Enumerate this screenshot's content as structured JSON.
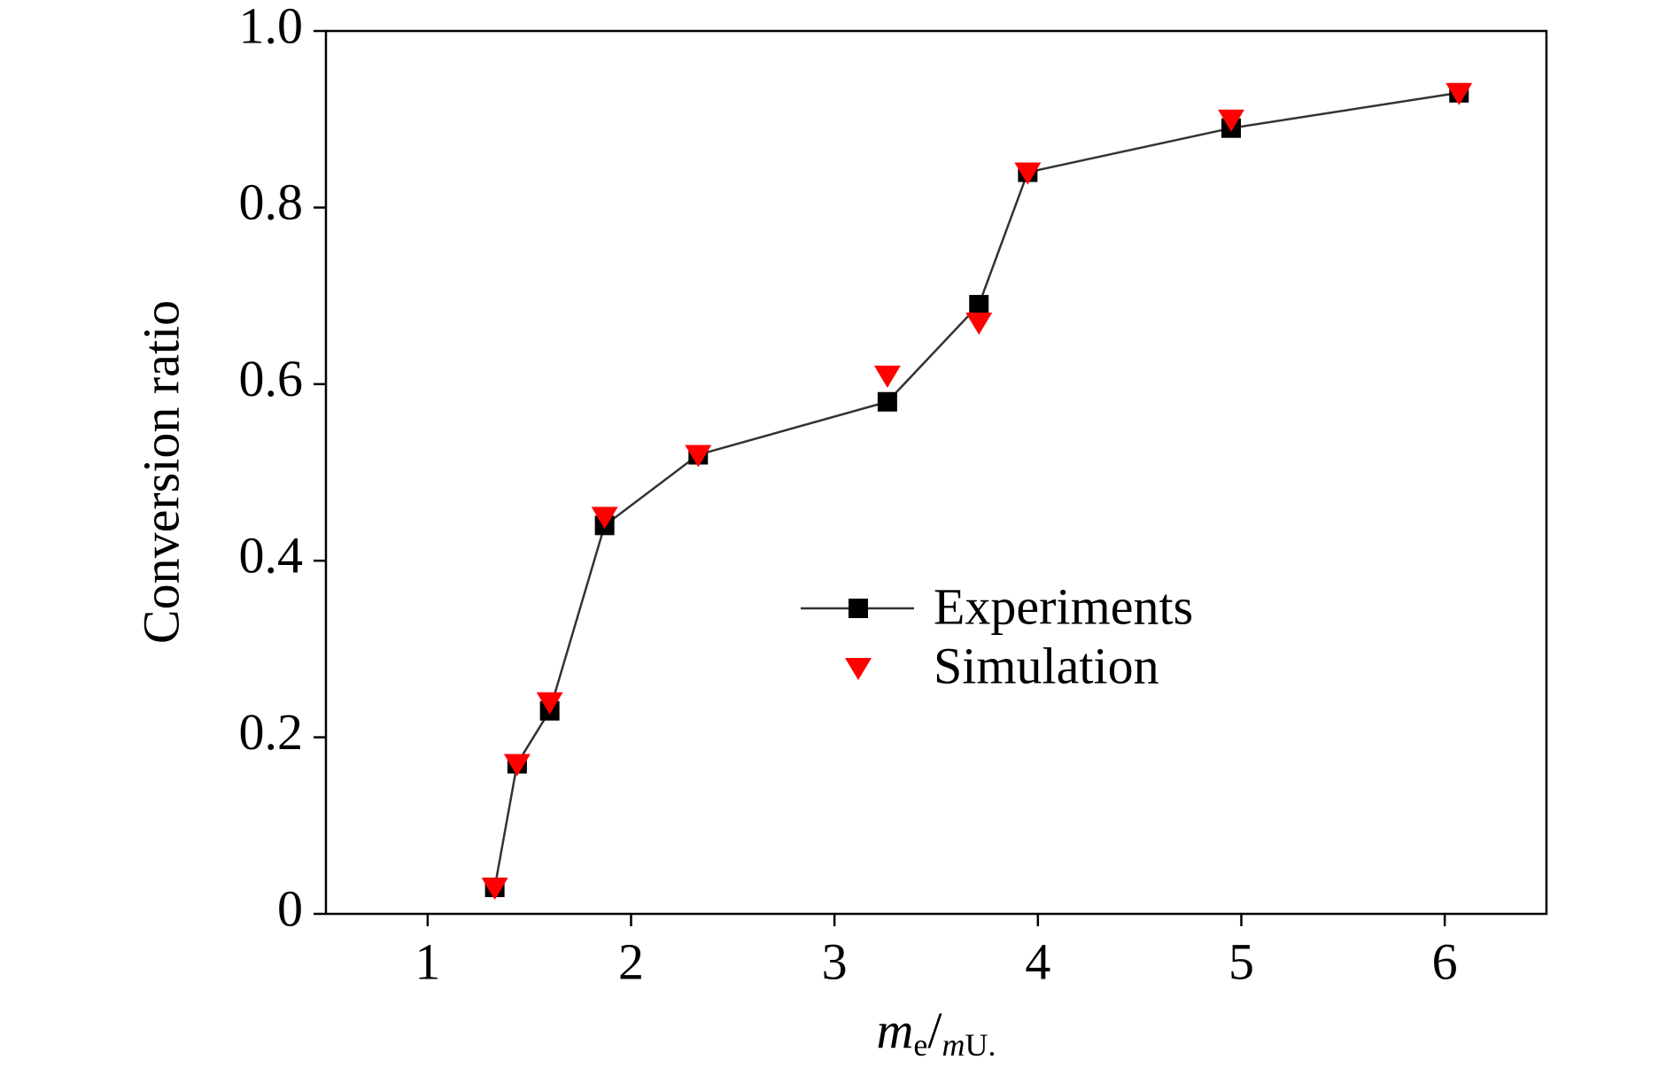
{
  "chart_data": {
    "type": "line",
    "x_label": [
      "m",
      "e",
      "/",
      "m",
      "U."
    ],
    "y_label": "Conversion ratio",
    "x": [
      1.33,
      1.44,
      1.6,
      1.87,
      2.33,
      3.26,
      3.71,
      3.95,
      4.95,
      6.07
    ],
    "series": [
      {
        "name": "Experiments",
        "color": "#000000",
        "line_color": "#333333",
        "marker": "square",
        "values": [
          0.03,
          0.17,
          0.23,
          0.44,
          0.52,
          0.58,
          0.69,
          0.84,
          0.89,
          0.93
        ]
      },
      {
        "name": "Simulation",
        "color": "#ff0000",
        "marker": "triangle-down",
        "values": [
          0.03,
          0.17,
          0.24,
          0.45,
          0.52,
          0.61,
          0.67,
          0.84,
          0.9,
          0.93
        ]
      }
    ],
    "xlim": [
      0.5,
      6.5
    ],
    "xticks": [
      1,
      2,
      3,
      4,
      5,
      6
    ],
    "ylim": [
      0,
      1
    ],
    "yticks": [
      0,
      0.2,
      0.4,
      0.6,
      0.8,
      {
        "value": 1,
        "label": "1.0"
      }
    ],
    "grid": false,
    "legend": "center"
  }
}
